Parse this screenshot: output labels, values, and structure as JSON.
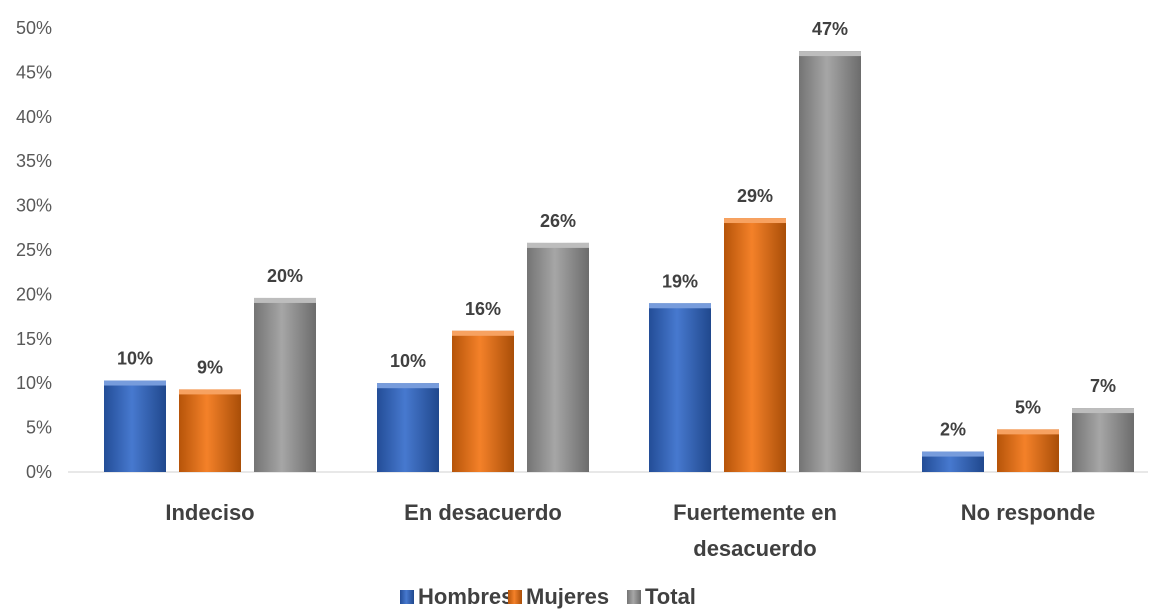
{
  "chart_data": {
    "type": "bar",
    "categories": [
      "Indeciso",
      "En desacuerdo",
      "Fuertemente en desacuerdo",
      "No responde"
    ],
    "category_lines": [
      [
        "Indeciso"
      ],
      [
        "En desacuerdo"
      ],
      [
        "Fuertemente en",
        "desacuerdo"
      ],
      [
        "No responde"
      ]
    ],
    "series": [
      {
        "name": "Hombres",
        "values": [
          10.3,
          10.0,
          19.0,
          2.3
        ],
        "labels": [
          "10%",
          "10%",
          "19%",
          "2%"
        ],
        "color": "#2E67C9"
      },
      {
        "name": "Mujeres",
        "values": [
          9.3,
          15.9,
          28.6,
          4.8
        ],
        "labels": [
          "9%",
          "16%",
          "29%",
          "5%"
        ],
        "color": "#F2700C"
      },
      {
        "name": "Total",
        "values": [
          19.6,
          25.8,
          47.4,
          7.2
        ],
        "labels": [
          "20%",
          "26%",
          "47%",
          "7%"
        ],
        "color": "#9A9A9A"
      }
    ],
    "yticks": [
      "0%",
      "5%",
      "10%",
      "15%",
      "20%",
      "25%",
      "30%",
      "35%",
      "40%",
      "45%",
      "50%"
    ],
    "ylim": [
      0,
      50
    ],
    "grid": false,
    "legend": "bottom",
    "title": "",
    "xlabel": "",
    "ylabel": ""
  }
}
